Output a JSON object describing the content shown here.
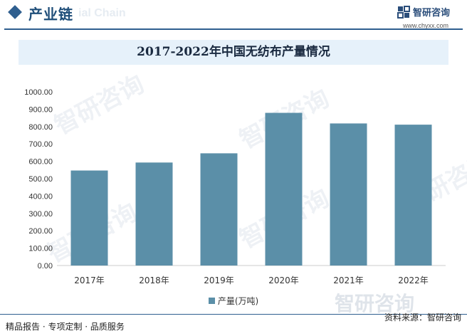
{
  "header": {
    "section_title": "产业链",
    "bg_text": "ial Chain",
    "brand_name": "智研咨询",
    "brand_url": "www.chyxx.com"
  },
  "watermark": {
    "text": "智研咨询"
  },
  "colors": {
    "bar": "#5b8fa8",
    "accent": "#2f5f8f",
    "title_band": "#e6f1fa"
  },
  "footer": {
    "left": "精品报告 · 专项定制 · 品质服务",
    "right": "资料来源：智研咨询"
  },
  "chart_data": {
    "type": "bar",
    "title": "2017-2022年中国无纺布产量情况",
    "categories": [
      "2017年",
      "2018年",
      "2019年",
      "2020年",
      "2021年",
      "2022年"
    ],
    "series": [
      {
        "name": "产量(万吨)",
        "values": [
          547,
          593,
          646,
          879,
          818,
          811
        ]
      }
    ],
    "ylim": [
      0,
      1000
    ],
    "yticks": [
      "0.00",
      "100.00",
      "200.00",
      "300.00",
      "400.00",
      "500.00",
      "600.00",
      "700.00",
      "800.00",
      "900.00",
      "1000.00"
    ],
    "grid": false,
    "legend_position": "bottom"
  }
}
